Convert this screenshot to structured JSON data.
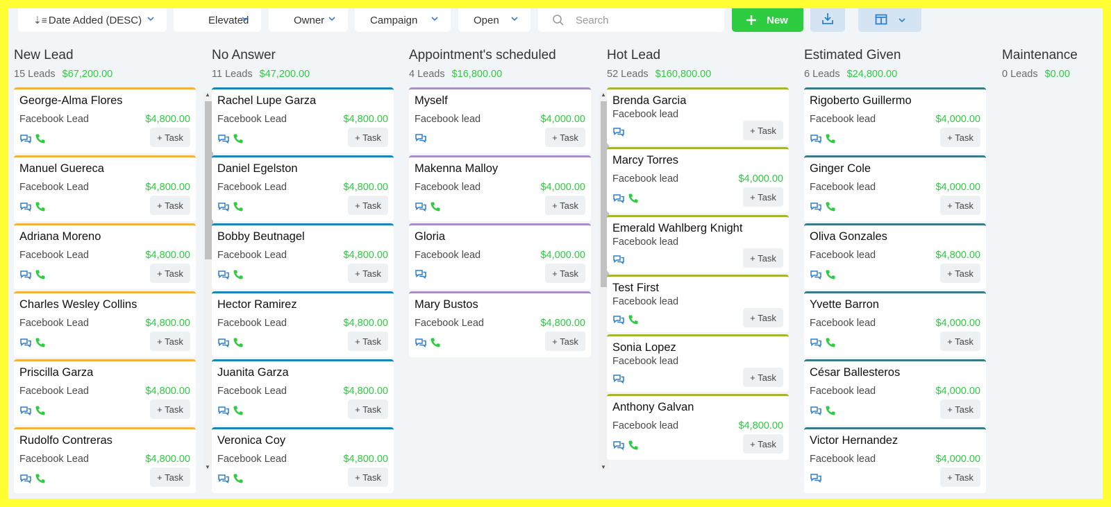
{
  "toolbar": {
    "sort_label": "Date Added (DESC)",
    "elevated_label": "Elevated",
    "owner_label": "Owner",
    "campaign_label": "Campaign",
    "open_label": "Open",
    "search_placeholder": "Search",
    "new_label": "New"
  },
  "colors": {
    "new_lead": "#f0b43a",
    "no_answer": "#1a86b8",
    "appointment": "#a890c4",
    "hot_lead": "#a8b42e",
    "estimated": "#3a7a86",
    "money": "#2ecc40"
  },
  "task_label": "+ Task",
  "columns": [
    {
      "title": "New Lead",
      "count": "15 Leads",
      "amount": "$67,200.00",
      "cards": [
        {
          "name": "George-Alma Flores",
          "source": "Facebook Lead",
          "price": "$4,800.00",
          "phone": true
        },
        {
          "name": "Manuel Guereca",
          "source": "Facebook Lead",
          "price": "$4,800.00",
          "phone": true
        },
        {
          "name": "Adriana Moreno",
          "source": "Facebook Lead",
          "price": "$4,800.00",
          "phone": true
        },
        {
          "name": "Charles Wesley Collins",
          "source": "Facebook Lead",
          "price": "$4,800.00",
          "phone": true
        },
        {
          "name": "Priscilla Garza",
          "source": "Facebook Lead",
          "price": "$4,800.00",
          "phone": true
        },
        {
          "name": "Rudolfo Contreras",
          "source": "Facebook Lead",
          "price": "$4,800.00",
          "phone": true
        }
      ]
    },
    {
      "title": "No Answer",
      "count": "11 Leads",
      "amount": "$47,200.00",
      "cards": [
        {
          "name": "Rachel Lupe Garza",
          "source": "Facebook Lead",
          "price": "$4,800.00",
          "phone": true
        },
        {
          "name": "Daniel Egelston",
          "source": "Facebook Lead",
          "price": "$4,800.00",
          "phone": true
        },
        {
          "name": "Bobby Beutnagel",
          "source": "Facebook Lead",
          "price": "$4,800.00",
          "phone": true
        },
        {
          "name": "Hector Ramirez",
          "source": "Facebook Lead",
          "price": "$4,800.00",
          "phone": true
        },
        {
          "name": "Juanita Garza",
          "source": "Facebook Lead",
          "price": "$4,800.00",
          "phone": true
        },
        {
          "name": "Veronica Coy",
          "source": "Facebook Lead",
          "price": "$4,800.00",
          "phone": true
        }
      ]
    },
    {
      "title": "Appointment's scheduled",
      "count": "4 Leads",
      "amount": "$16,800.00",
      "cards": [
        {
          "name": "Myself",
          "source": "Facebook lead",
          "price": "$4,000.00",
          "phone": false
        },
        {
          "name": "Makenna Malloy",
          "source": "Facebook lead",
          "price": "$4,000.00",
          "phone": true
        },
        {
          "name": "Gloria",
          "source": "Facebook lead",
          "price": "$4,000.00",
          "phone": false
        },
        {
          "name": "Mary Bustos",
          "source": "Facebook Lead",
          "price": "$4,800.00",
          "phone": true
        }
      ]
    },
    {
      "title": "Hot Lead",
      "count": "52 Leads",
      "amount": "$160,800.00",
      "cards": [
        {
          "name": "Brenda Garcia",
          "source": "Facebook lead",
          "price": "",
          "phone": false
        },
        {
          "name": "Marcy Torres",
          "source": "Facebook lead",
          "price": "$4,000.00",
          "phone": true
        },
        {
          "name": "Emerald Wahlberg Knight",
          "source": "Facebook lead",
          "price": "",
          "phone": false
        },
        {
          "name": "Test First",
          "source": "Facebook lead",
          "price": "",
          "phone": true
        },
        {
          "name": "Sonia Lopez",
          "source": "Facebook lead",
          "price": "",
          "phone": false
        },
        {
          "name": "Anthony Galvan",
          "source": "Facebook lead",
          "price": "$4,800.00",
          "phone": true
        }
      ]
    },
    {
      "title": "Estimated Given",
      "count": "6 Leads",
      "amount": "$24,800.00",
      "cards": [
        {
          "name": "Rigoberto Guillermo",
          "source": "Facebook lead",
          "price": "$4,000.00",
          "phone": true
        },
        {
          "name": "Ginger Cole",
          "source": "Facebook lead",
          "price": "$4,000.00",
          "phone": true
        },
        {
          "name": "Oliva Gonzales",
          "source": "Facebook lead",
          "price": "$4,800.00",
          "phone": true
        },
        {
          "name": "Yvette Barron",
          "source": "Facebook lead",
          "price": "$4,000.00",
          "phone": true
        },
        {
          "name": "César Ballesteros",
          "source": "Facebook lead",
          "price": "$4,000.00",
          "phone": true
        },
        {
          "name": "Victor Hernandez",
          "source": "Facebook lead",
          "price": "$4,000.00",
          "phone": false
        }
      ]
    },
    {
      "title": "Maintenance",
      "count": "0 Leads",
      "amount": "$0.00",
      "cards": []
    }
  ]
}
